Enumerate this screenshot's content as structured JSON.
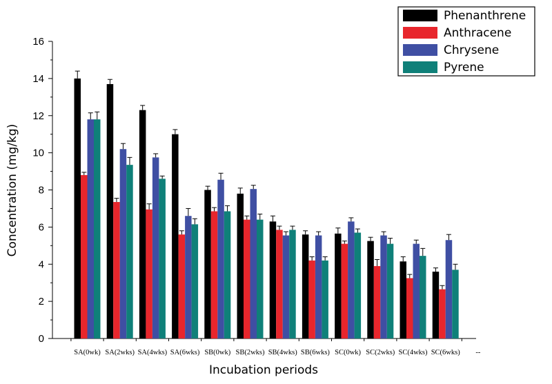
{
  "chart_data": {
    "type": "bar",
    "xlabel": "Incubation periods",
    "ylabel": "Concentration (mg/kg)",
    "ylim": [
      0,
      16
    ],
    "yticks": [
      "0",
      "2",
      "4",
      "6",
      "8",
      "10",
      "12",
      "14",
      "16"
    ],
    "categories": [
      "SA(0wk)",
      "SA(2wks)",
      "SA(4wks)",
      "SA(6wks)",
      "SB(0wk)",
      "SB(2wks)",
      "SB(4wks)",
      "SB(6wks)",
      "SC(0wk)",
      "SC(2wks)",
      "SC(4wks)",
      "SC(6wks)"
    ],
    "extra_tick_label": "--",
    "legend_position": "top-right",
    "grid": false,
    "series": [
      {
        "name": "Phenanthrene",
        "color": "#000000",
        "values": [
          14.0,
          13.7,
          12.3,
          11.0,
          8.0,
          7.8,
          6.3,
          5.6,
          5.65,
          5.25,
          4.15,
          3.6
        ],
        "errors": [
          0.4,
          0.25,
          0.25,
          0.25,
          0.2,
          0.3,
          0.3,
          0.2,
          0.3,
          0.2,
          0.25,
          0.2
        ]
      },
      {
        "name": "Anthracene",
        "color": "#e8262c",
        "values": [
          8.8,
          7.35,
          6.95,
          5.6,
          6.85,
          6.4,
          5.85,
          4.2,
          5.1,
          3.9,
          3.25,
          2.65
        ],
        "errors": [
          0.15,
          0.2,
          0.3,
          0.2,
          0.2,
          0.2,
          0.2,
          0.2,
          0.15,
          0.35,
          0.2,
          0.2
        ]
      },
      {
        "name": "Chrysene",
        "color": "#3f4fa3",
        "values": [
          11.8,
          10.2,
          9.75,
          6.6,
          8.55,
          8.05,
          5.55,
          5.55,
          6.3,
          5.55,
          5.1,
          5.3
        ],
        "errors": [
          0.35,
          0.3,
          0.2,
          0.4,
          0.35,
          0.2,
          0.2,
          0.2,
          0.2,
          0.2,
          0.2,
          0.3
        ]
      },
      {
        "name": "Pyrene",
        "color": "#0f8079",
        "values": [
          11.8,
          9.35,
          8.6,
          6.15,
          6.85,
          6.4,
          5.85,
          4.2,
          5.7,
          5.1,
          4.45,
          3.7
        ],
        "errors": [
          0.4,
          0.4,
          0.15,
          0.3,
          0.3,
          0.3,
          0.2,
          0.2,
          0.2,
          0.3,
          0.4,
          0.3
        ]
      }
    ]
  }
}
